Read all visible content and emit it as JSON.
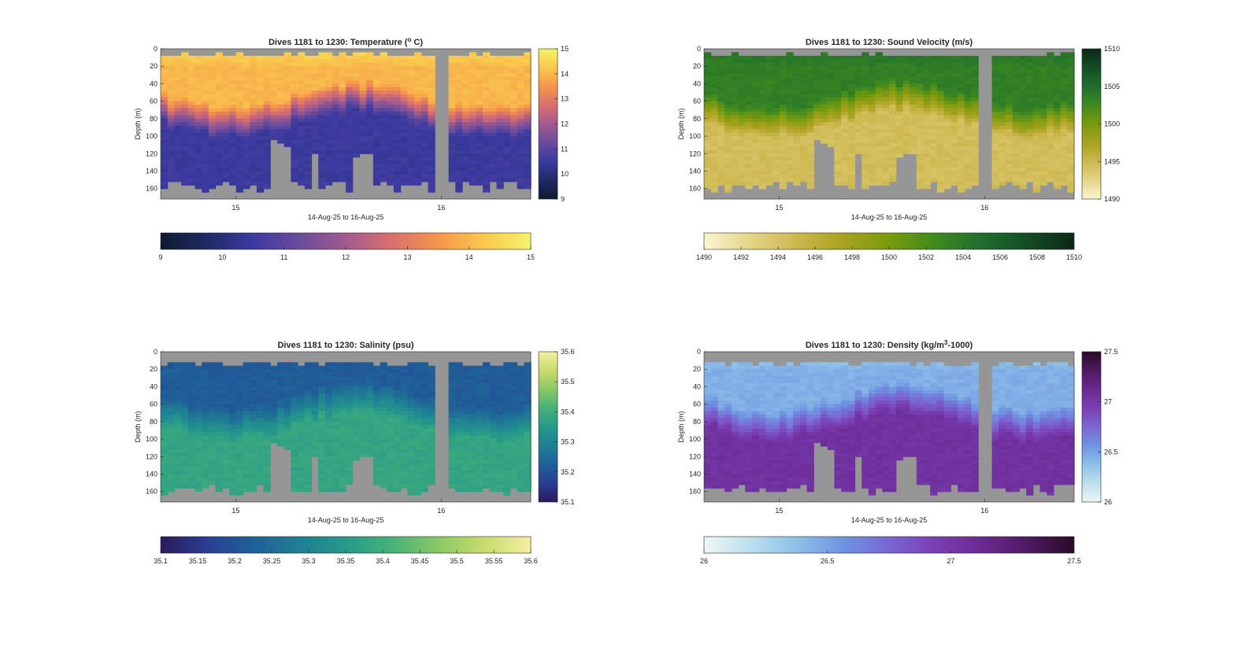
{
  "chart_data": [
    {
      "type": "heatmap",
      "title": "Dives 1181 to 1230: Temperature (° C)",
      "title_parts": [
        "Dives 1181 to 1230: Temperature (",
        "o",
        " C)"
      ],
      "ylabel": "Depth (m)",
      "xlabel": "14-Aug-25 to 16-Aug-25",
      "x_ticks": [
        "15",
        "16"
      ],
      "y_ticks": [
        "0",
        "20",
        "40",
        "60",
        "80",
        "100",
        "120",
        "140",
        "160"
      ],
      "ylim": [
        0,
        172
      ],
      "y_reversed": true,
      "colorbar_ticks": [
        "9",
        "10",
        "11",
        "12",
        "13",
        "14",
        "15"
      ],
      "clim": [
        9,
        15
      ],
      "colormap": [
        "#0d1b2e",
        "#1f2a64",
        "#3b3aa0",
        "#6a4c9c",
        "#a25a8e",
        "#d9706e",
        "#f6964c",
        "#f9c84c",
        "#f4f46a"
      ],
      "profile": {
        "surface": 14.5,
        "mixed": 14.0,
        "deep": 10.5
      },
      "colorbar_ticks_full": [
        "9",
        "10",
        "11",
        "12",
        "13",
        "14",
        "15"
      ]
    },
    {
      "type": "heatmap",
      "title": "Dives 1181 to 1230: Sound Velocity (m/s)",
      "title_parts": [
        "Dives 1181 to 1230: Sound Velocity (m/s)",
        "",
        ""
      ],
      "ylabel": "Depth (m)",
      "xlabel": "14-Aug-25 to 16-Aug-25",
      "x_ticks": [
        "15",
        "16"
      ],
      "y_ticks": [
        "0",
        "20",
        "40",
        "60",
        "80",
        "100",
        "120",
        "140",
        "160"
      ],
      "ylim": [
        0,
        172
      ],
      "y_reversed": true,
      "colorbar_ticks": [
        "1490",
        "1495",
        "1500",
        "1505",
        "1510"
      ],
      "clim": [
        1490,
        1510
      ],
      "colormap": [
        "#fbf6d0",
        "#e4d488",
        "#cdb84f",
        "#a8a21e",
        "#7a9a0e",
        "#3f8a1f",
        "#1e6e2e",
        "#144d24",
        "#0c2716"
      ],
      "profile": {
        "surface": 1504.5,
        "mixed": 1503.5,
        "deep": 1494.5
      },
      "colorbar_ticks_full": [
        "1490",
        "1492",
        "1494",
        "1496",
        "1498",
        "1500",
        "1502",
        "1504",
        "1506",
        "1508",
        "1510"
      ]
    },
    {
      "type": "heatmap",
      "title": "Dives 1181 to 1230: Salinity (psu)",
      "title_parts": [
        "Dives 1181 to 1230: Salinity (psu)",
        "",
        ""
      ],
      "ylabel": "Depth (m)",
      "xlabel": "14-Aug-25 to 16-Aug-25",
      "x_ticks": [
        "15",
        "16"
      ],
      "y_ticks": [
        "0",
        "20",
        "40",
        "60",
        "80",
        "100",
        "120",
        "140",
        "160"
      ],
      "ylim": [
        0,
        172
      ],
      "y_reversed": true,
      "colorbar_ticks": [
        "35.1",
        "35.2",
        "35.3",
        "35.4",
        "35.5",
        "35.6"
      ],
      "clim": [
        35.1,
        35.6
      ],
      "colormap": [
        "#2a1a5c",
        "#2a3e94",
        "#1f6098",
        "#1f7f94",
        "#26998a",
        "#46b178",
        "#8ac864",
        "#c8dc6c",
        "#f6eea2"
      ],
      "profile": {
        "surface": 35.2,
        "mixed": 35.22,
        "deep": 35.38
      },
      "colorbar_ticks_full": [
        "35.1",
        "35.15",
        "35.2",
        "35.25",
        "35.3",
        "35.35",
        "35.4",
        "35.45",
        "35.5",
        "35.55",
        "35.6"
      ]
    },
    {
      "type": "heatmap",
      "title": "Dives 1181 to 1230: Density (kg/m³-1000)",
      "title_parts": [
        "Dives 1181 to 1230: Density (kg/m",
        "3",
        "-1000)"
      ],
      "ylabel": "Depth (m)",
      "xlabel": "14-Aug-25 to 16-Aug-25",
      "x_ticks": [
        "15",
        "16"
      ],
      "y_ticks": [
        "0",
        "20",
        "40",
        "60",
        "80",
        "100",
        "120",
        "140",
        "160"
      ],
      "ylim": [
        0,
        172
      ],
      "y_reversed": true,
      "colorbar_ticks": [
        "26",
        "26.5",
        "27",
        "27.5"
      ],
      "clim": [
        26,
        27.5
      ],
      "colormap": [
        "#eef6f6",
        "#bcdfec",
        "#8ec0e8",
        "#6f94e2",
        "#7a66d2",
        "#7a3fb4",
        "#6a2a92",
        "#4e1a62",
        "#2a0a28"
      ],
      "profile": {
        "surface": 26.3,
        "mixed": 26.45,
        "deep": 27.05
      },
      "colorbar_ticks_full": [
        "26",
        "26.5",
        "27",
        "27.5"
      ]
    }
  ],
  "grid": false,
  "nodata_color": "#969696"
}
